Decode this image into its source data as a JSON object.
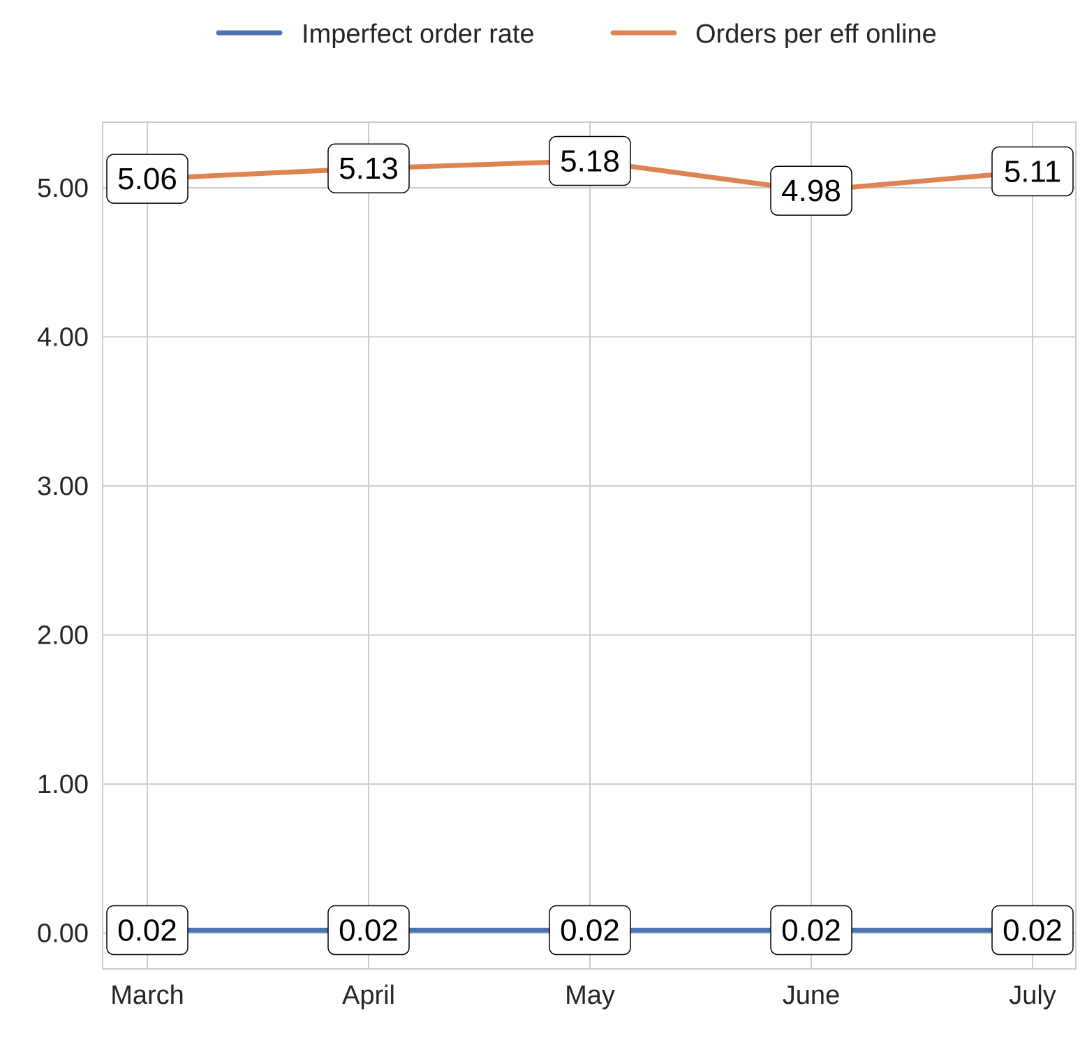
{
  "chart_data": {
    "type": "line",
    "categories": [
      "March",
      "April",
      "May",
      "June",
      "July"
    ],
    "series": [
      {
        "name": "Imperfect order rate",
        "values": [
          0.02,
          0.02,
          0.02,
          0.02,
          0.02
        ],
        "labels": [
          "0.02",
          "0.02",
          "0.02",
          "0.02",
          "0.02"
        ],
        "color": "#4c72b0"
      },
      {
        "name": "Orders per eff online",
        "values": [
          5.06,
          5.13,
          5.18,
          4.98,
          5.11
        ],
        "labels": [
          "5.06",
          "5.13",
          "5.18",
          "4.98",
          "5.11"
        ],
        "color": "#dd8452"
      }
    ],
    "yticks": [
      "0.00",
      "1.00",
      "2.00",
      "3.00",
      "4.00",
      "5.00"
    ],
    "ytick_values": [
      0,
      1,
      2,
      3,
      4,
      5
    ],
    "ylim": [
      -0.24,
      5.44
    ],
    "xlabel": "",
    "ylabel": "",
    "title": "",
    "grid": true,
    "legend": "top-center"
  }
}
